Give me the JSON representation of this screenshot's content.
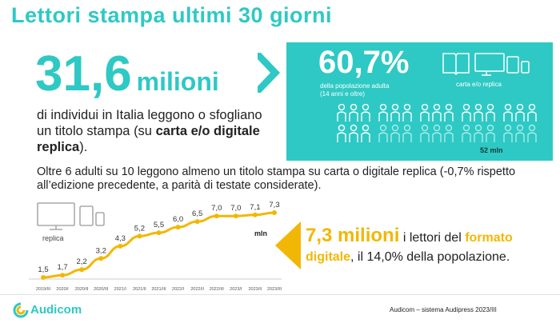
{
  "header": {
    "title": "Lettori  stampa ultimi 30 giorni"
  },
  "main_stat": {
    "value": "31,6",
    "unit": "milioni",
    "desc_prefix": "di individui in Italia leggono o sfogliano un titolo stampa (su",
    "desc_bold": "carta e/o digitale replica",
    "desc_suffix": ")."
  },
  "teal_panel": {
    "percent": "60,7%",
    "percent_sub_1": "della popolazione adulta",
    "percent_sub_2": "(14 anni e oltre)",
    "device_label": "carta e/o replica",
    "people_total": "52 mln",
    "people_filled": 6,
    "people_total_groups": 10
  },
  "oltre_text": "Oltre 6 adulti su 10 leggono almeno un titolo stampa su carta o digitale replica (-0,7% rispetto all’edizione precedente, a parità di testate considerate).",
  "chart_labels": {
    "replica": "replica",
    "unit": "mln"
  },
  "chart_data": {
    "type": "line",
    "x": [
      "2019/III",
      "2020/I",
      "2020/II",
      "2020/III",
      "2021/I",
      "2021/II",
      "2021/III",
      "2022/I",
      "2022/II",
      "2022/III",
      "2023/I",
      "2023/II",
      "2023/III"
    ],
    "values": [
      1.5,
      1.7,
      2.2,
      3.2,
      4.3,
      5.2,
      5.5,
      6.0,
      6.5,
      7.0,
      7.0,
      7.1,
      7.3
    ],
    "value_labels": [
      "1,5",
      "1,7",
      "2,2",
      "3,2",
      "4,3",
      "5,2",
      "5,5",
      "6,0",
      "6,5",
      "7,0",
      "7,0",
      "7,1",
      "7,3"
    ],
    "ylabel": "mln",
    "color": "#f2b705"
  },
  "digital": {
    "value": "7,3 milioni",
    "text1": " i lettori del ",
    "hl": "formato digitale",
    "text2": ", il 14,0% della popolazione."
  },
  "footer": {
    "brand": "Audicom",
    "source": "Audicom – sistema Audipress 2023/III"
  },
  "colors": {
    "teal": "#2ec9c4",
    "yellow": "#f2b705"
  }
}
